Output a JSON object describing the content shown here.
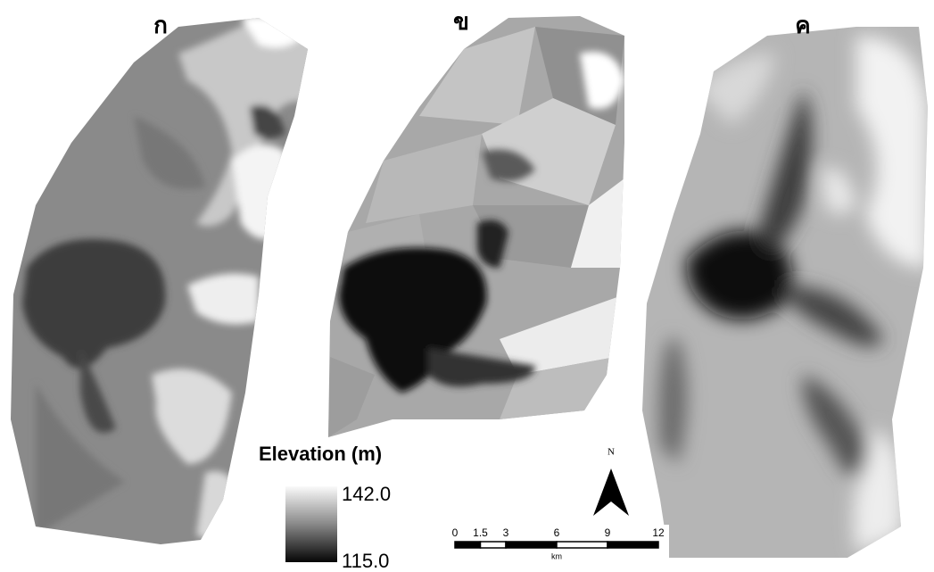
{
  "panels": [
    {
      "label": "ก"
    },
    {
      "label": "ข"
    },
    {
      "label": "ค"
    }
  ],
  "legend": {
    "title": "Elevation (m)",
    "max_label": "142.0",
    "min_label": "115.0"
  },
  "north_arrow": {
    "label": "N"
  },
  "scale_bar": {
    "ticks": [
      "0",
      "1.5",
      "3",
      "6",
      "9",
      "12"
    ],
    "unit": "km"
  }
}
